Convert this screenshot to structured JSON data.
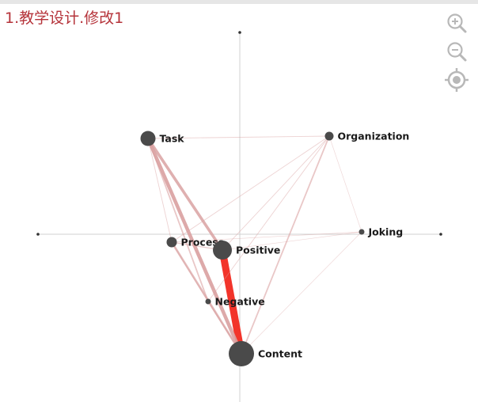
{
  "title": "1.教学设计.修改1",
  "controls": {
    "zoom_in_icon": "zoom-in-icon",
    "zoom_out_icon": "zoom-out-icon",
    "center_icon": "target-icon"
  },
  "colors": {
    "title": "#b5333a",
    "node": "#4a4a4a",
    "edge": "#d9a0a0",
    "strong_edge": "#f2342a",
    "axis": "#d0d0d0",
    "control": "#b8b8b8"
  },
  "nodes": [
    {
      "id": "task",
      "label": "Task",
      "weight": 3
    },
    {
      "id": "organization",
      "label": "Organization",
      "weight": 2
    },
    {
      "id": "joking",
      "label": "Joking",
      "weight": 1
    },
    {
      "id": "process",
      "label": "Process",
      "weight": 2.5
    },
    {
      "id": "positive",
      "label": "Positive",
      "weight": 4
    },
    {
      "id": "negative",
      "label": "Negative",
      "weight": 1
    },
    {
      "id": "content",
      "label": "Content",
      "weight": 5
    }
  ],
  "edges": [
    {
      "from": "positive",
      "to": "content",
      "weight": 10
    },
    {
      "from": "task",
      "to": "content",
      "weight": 5
    },
    {
      "from": "task",
      "to": "positive",
      "weight": 4
    },
    {
      "from": "task",
      "to": "negative",
      "weight": 2
    },
    {
      "from": "task",
      "to": "process",
      "weight": 1
    },
    {
      "from": "task",
      "to": "organization",
      "weight": 1
    },
    {
      "from": "process",
      "to": "content",
      "weight": 3
    },
    {
      "from": "process",
      "to": "positive",
      "weight": 1.5
    },
    {
      "from": "process",
      "to": "negative",
      "weight": 1
    },
    {
      "from": "process",
      "to": "organization",
      "weight": 1
    },
    {
      "from": "process",
      "to": "joking",
      "weight": 0.8
    },
    {
      "from": "organization",
      "to": "content",
      "weight": 2
    },
    {
      "from": "organization",
      "to": "positive",
      "weight": 1
    },
    {
      "from": "organization",
      "to": "negative",
      "weight": 1
    },
    {
      "from": "organization",
      "to": "joking",
      "weight": 0.5
    },
    {
      "from": "joking",
      "to": "content",
      "weight": 0.5
    },
    {
      "from": "joking",
      "to": "positive",
      "weight": 0.6
    },
    {
      "from": "negative",
      "to": "content",
      "weight": 2
    }
  ]
}
